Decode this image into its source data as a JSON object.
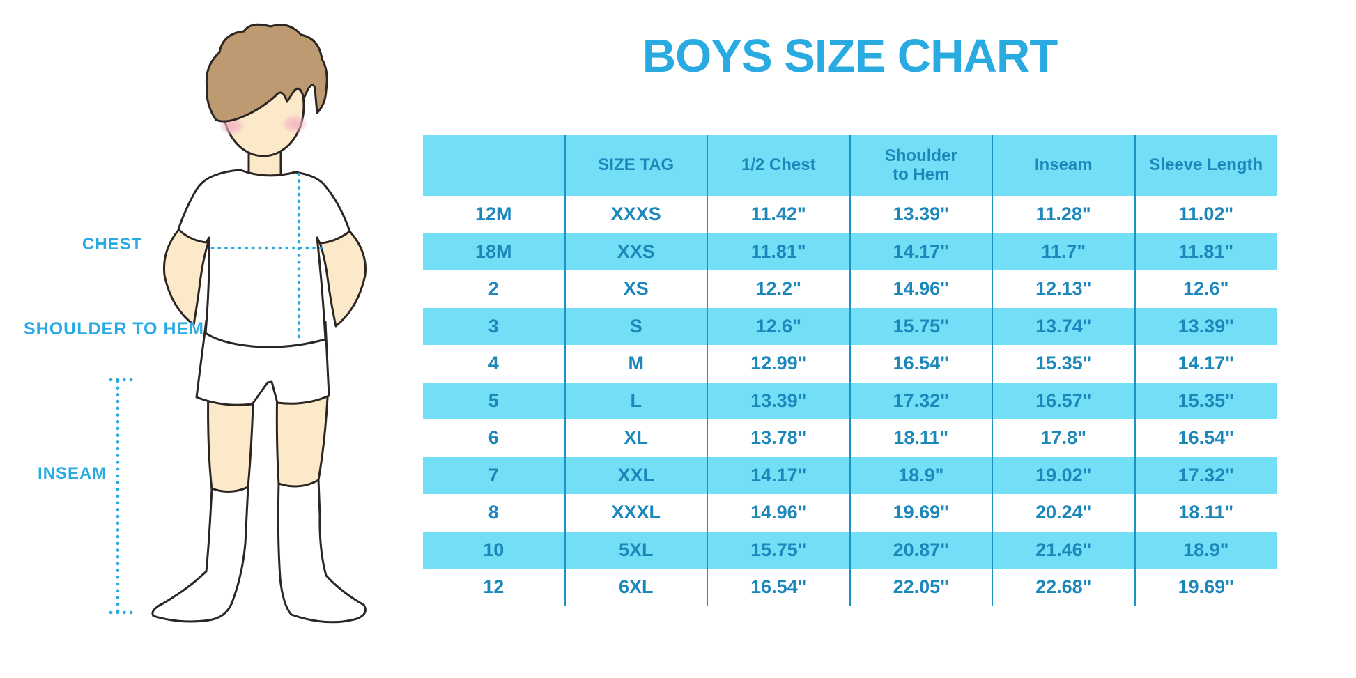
{
  "title": "BOYS SIZE CHART",
  "figure": {
    "name": "boy-body-measurement-illustration",
    "labels": {
      "chest": "CHEST",
      "shoulder_to_hem": "SHOULDER TO HEM",
      "inseam": "INSEAM"
    },
    "colors": {
      "hair": "#BD9A72",
      "skin": "#FCE9C9",
      "blush": "#F3B3C4",
      "outline": "#2B2622",
      "garment": "#FFFFFF",
      "measure_dots": "#29ABE2"
    }
  },
  "colors": {
    "accent_blue": "#29ABE2",
    "table_text": "#1C87BA",
    "stripe_cyan": "#72DFF7",
    "divider_blue": "#1B93C4",
    "row_white": "#FFFFFF"
  },
  "table": {
    "headers": [
      "",
      "SIZE TAG",
      "1/2 Chest",
      "Shoulder to Hem",
      "Inseam",
      "Sleeve Length"
    ],
    "rows": [
      [
        "12M",
        "XXXS",
        "11.42\"",
        "13.39\"",
        "11.28\"",
        "11.02\""
      ],
      [
        "18M",
        "XXS",
        "11.81\"",
        "14.17\"",
        "11.7\"",
        "11.81\""
      ],
      [
        "2",
        "XS",
        "12.2\"",
        "14.96\"",
        "12.13\"",
        "12.6\""
      ],
      [
        "3",
        "S",
        "12.6\"",
        "15.75\"",
        "13.74\"",
        "13.39\""
      ],
      [
        "4",
        "M",
        "12.99\"",
        "16.54\"",
        "15.35\"",
        "14.17\""
      ],
      [
        "5",
        "L",
        "13.39\"",
        "17.32\"",
        "16.57\"",
        "15.35\""
      ],
      [
        "6",
        "XL",
        "13.78\"",
        "18.11\"",
        "17.8\"",
        "16.54\""
      ],
      [
        "7",
        "XXL",
        "14.17\"",
        "18.9\"",
        "19.02\"",
        "17.32\""
      ],
      [
        "8",
        "XXXL",
        "14.96\"",
        "19.69\"",
        "20.24\"",
        "18.11\""
      ],
      [
        "10",
        "5XL",
        "15.75\"",
        "20.87\"",
        "21.46\"",
        "18.9\""
      ],
      [
        "12",
        "6XL",
        "16.54\"",
        "22.05\"",
        "22.68\"",
        "19.69\""
      ]
    ]
  }
}
